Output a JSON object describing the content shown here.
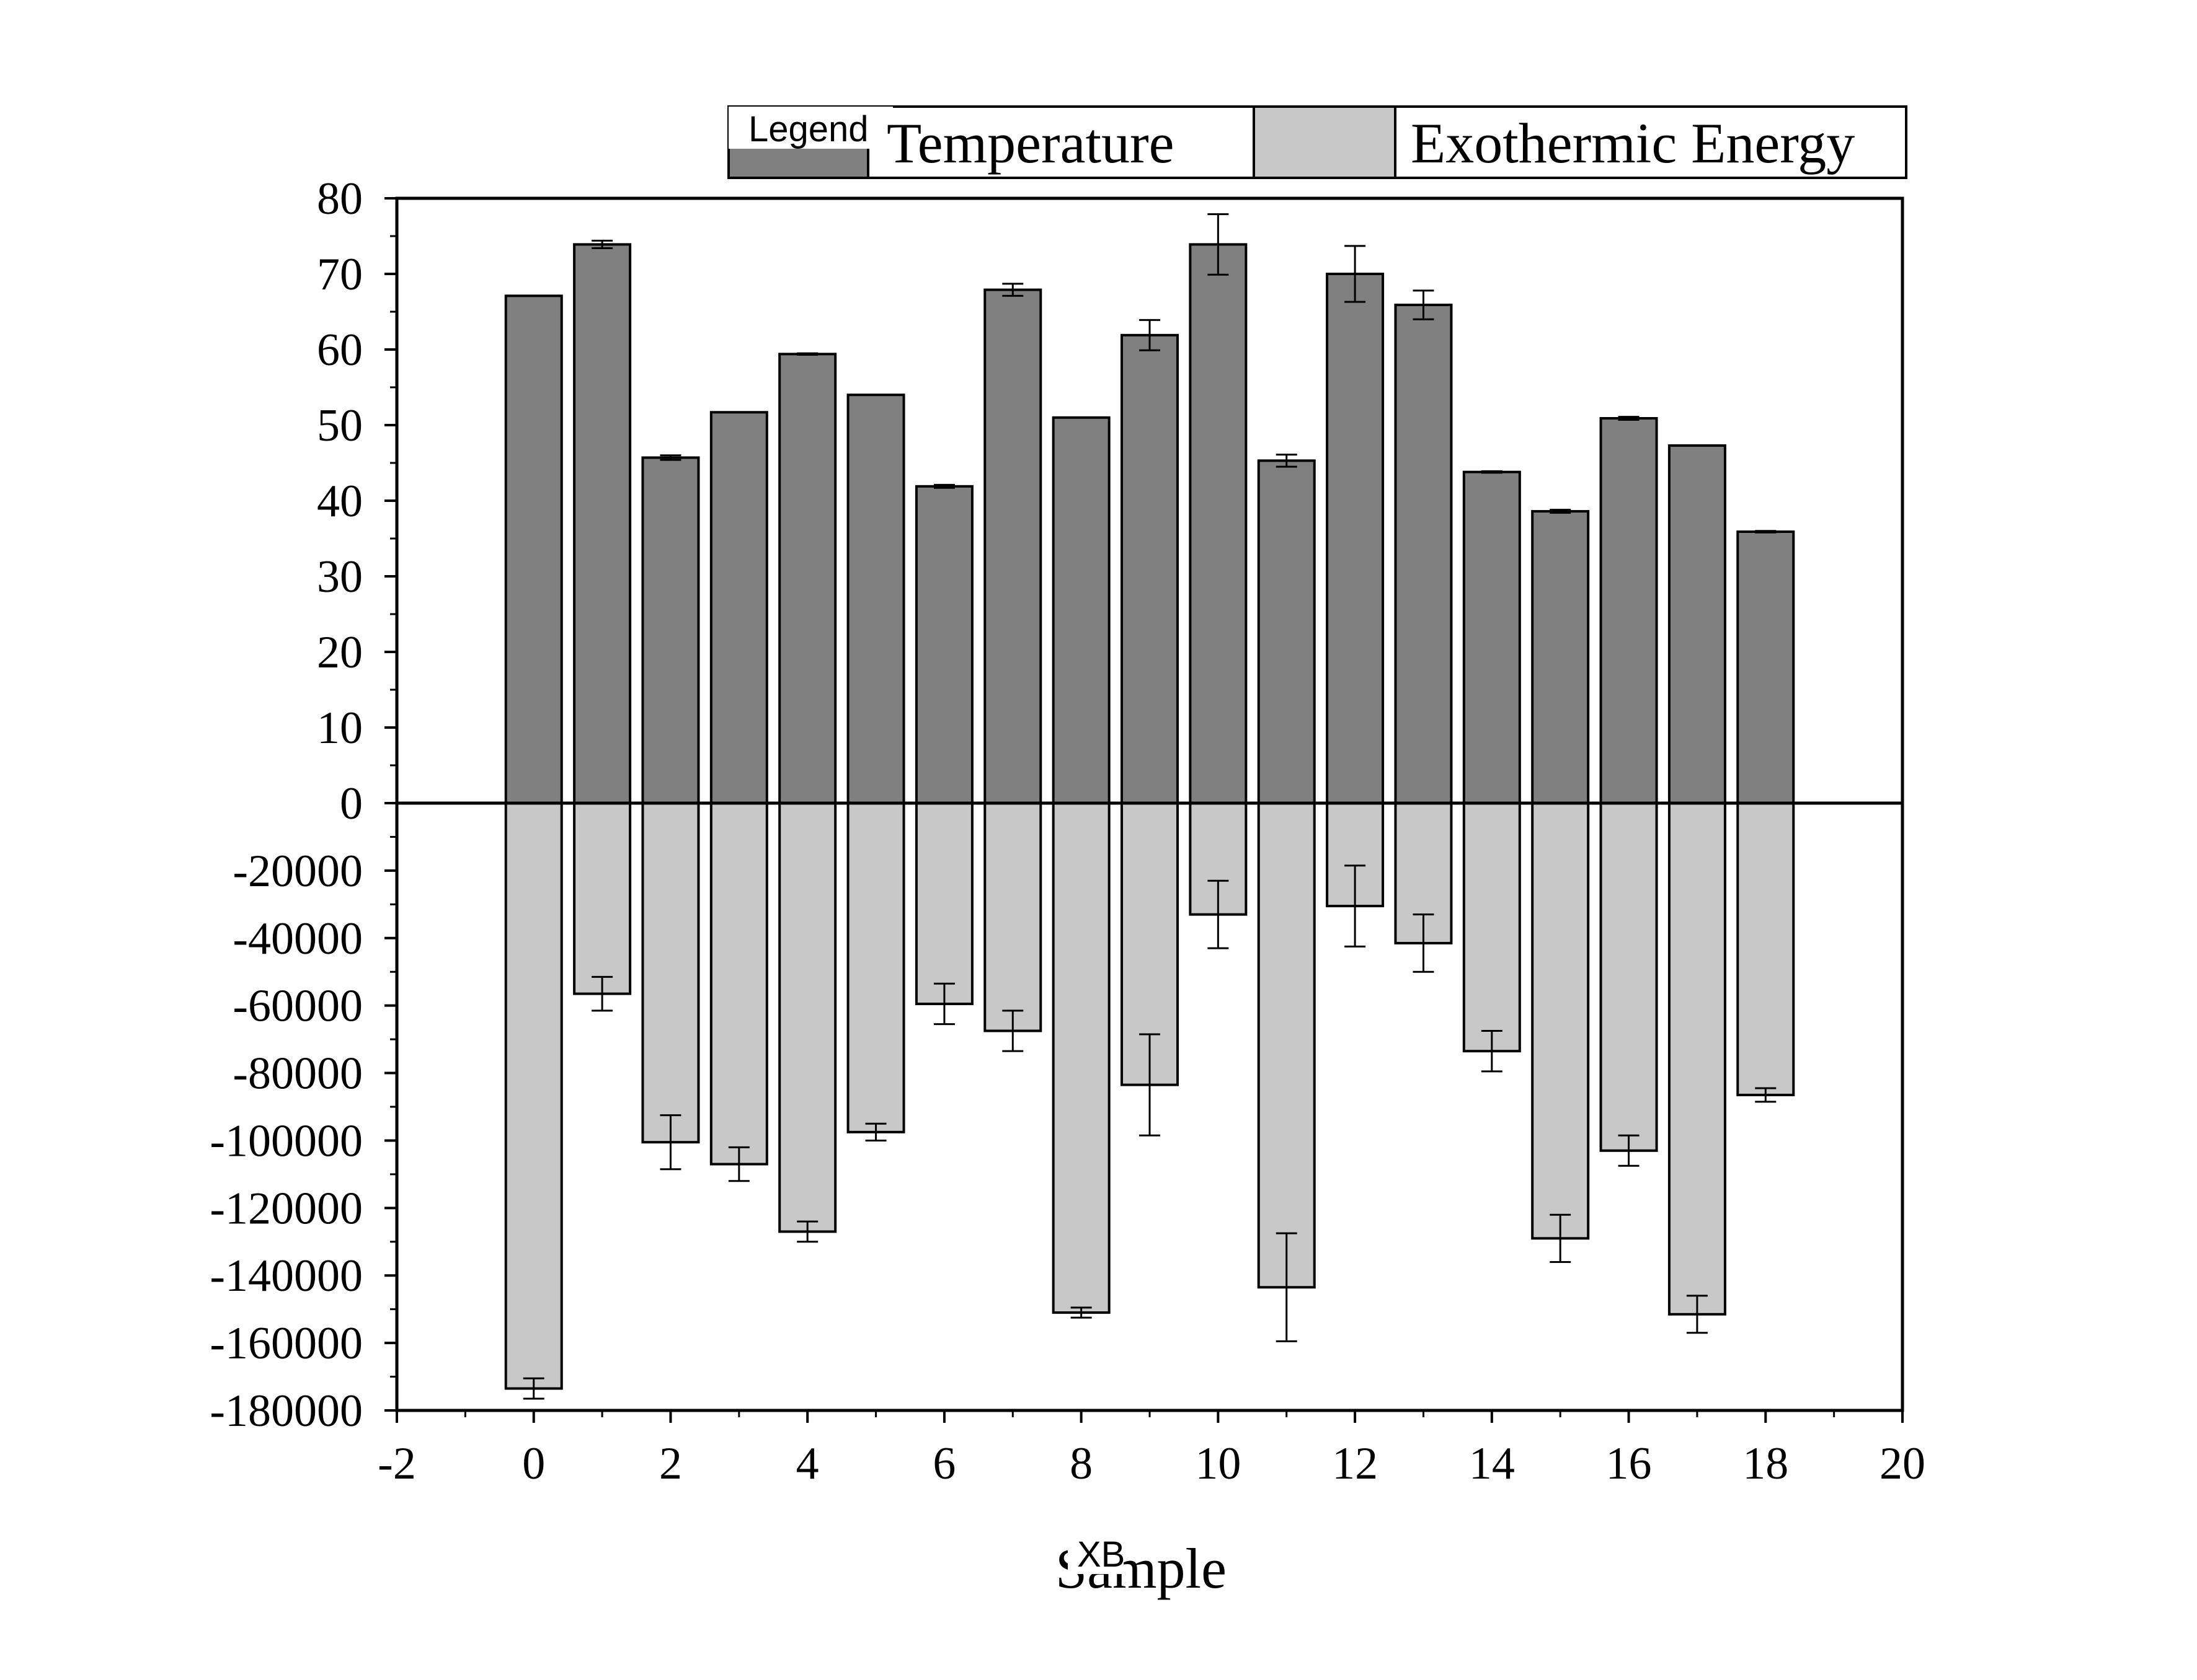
{
  "chart_data": {
    "type": "bar",
    "legend": {
      "title": "Legend",
      "placement": "top"
    },
    "series": [
      {
        "name": "Temperature",
        "color": "#808080",
        "x": [
          0,
          1,
          2,
          3,
          4,
          5,
          6,
          7,
          8,
          9,
          10,
          11,
          12,
          13,
          14,
          15,
          16,
          17,
          18
        ],
        "values": [
          67.1,
          73.9,
          45.7,
          51.7,
          59.4,
          54.0,
          41.9,
          67.9,
          51.0,
          61.9,
          73.9,
          45.3,
          70.0,
          65.9,
          43.8,
          38.6,
          50.9,
          47.3,
          35.9
        ],
        "errors": [
          0,
          0.5,
          0.3,
          0,
          0.1,
          0,
          0.2,
          0.8,
          0,
          2.0,
          4.0,
          0.8,
          3.7,
          1.9,
          0.1,
          0.2,
          0.2,
          0,
          0.1
        ]
      },
      {
        "name": "Exothermic Energy",
        "color": "#c8c8c8",
        "x": [
          0,
          1,
          2,
          3,
          4,
          5,
          6,
          7,
          8,
          9,
          10,
          11,
          12,
          13,
          14,
          15,
          16,
          17,
          18
        ],
        "values": [
          -173500,
          -56500,
          -100500,
          -107000,
          -127000,
          -97500,
          -59500,
          -67500,
          -151000,
          -83500,
          -33000,
          -143500,
          -30500,
          -41500,
          -73500,
          -129000,
          -103000,
          -151500,
          -86500
        ],
        "errors": [
          3000,
          5000,
          8000,
          5000,
          3000,
          2500,
          6000,
          6000,
          1500,
          15000,
          10000,
          16000,
          12000,
          8500,
          6000,
          7000,
          4500,
          5500,
          2000
        ]
      }
    ],
    "x_axis": {
      "label": "Sample",
      "range": [
        -2,
        20
      ],
      "tick_labels": [
        "-2",
        "0",
        "2",
        "4",
        "6",
        "8",
        "10",
        "12",
        "14",
        "16",
        "18",
        "20"
      ],
      "overlay_tag": "XB"
    },
    "y_axis_top": {
      "range": [
        0,
        80
      ],
      "tick_labels": [
        "80",
        "70",
        "60",
        "50",
        "40",
        "30",
        "20",
        "10",
        "0"
      ]
    },
    "y_axis_bottom": {
      "range": [
        -180000,
        0
      ],
      "tick_labels": [
        "-20000",
        "-40000",
        "-60000",
        "-80000",
        "-100000",
        "-120000",
        "-140000",
        "-160000",
        "-180000"
      ]
    },
    "grid": false
  }
}
